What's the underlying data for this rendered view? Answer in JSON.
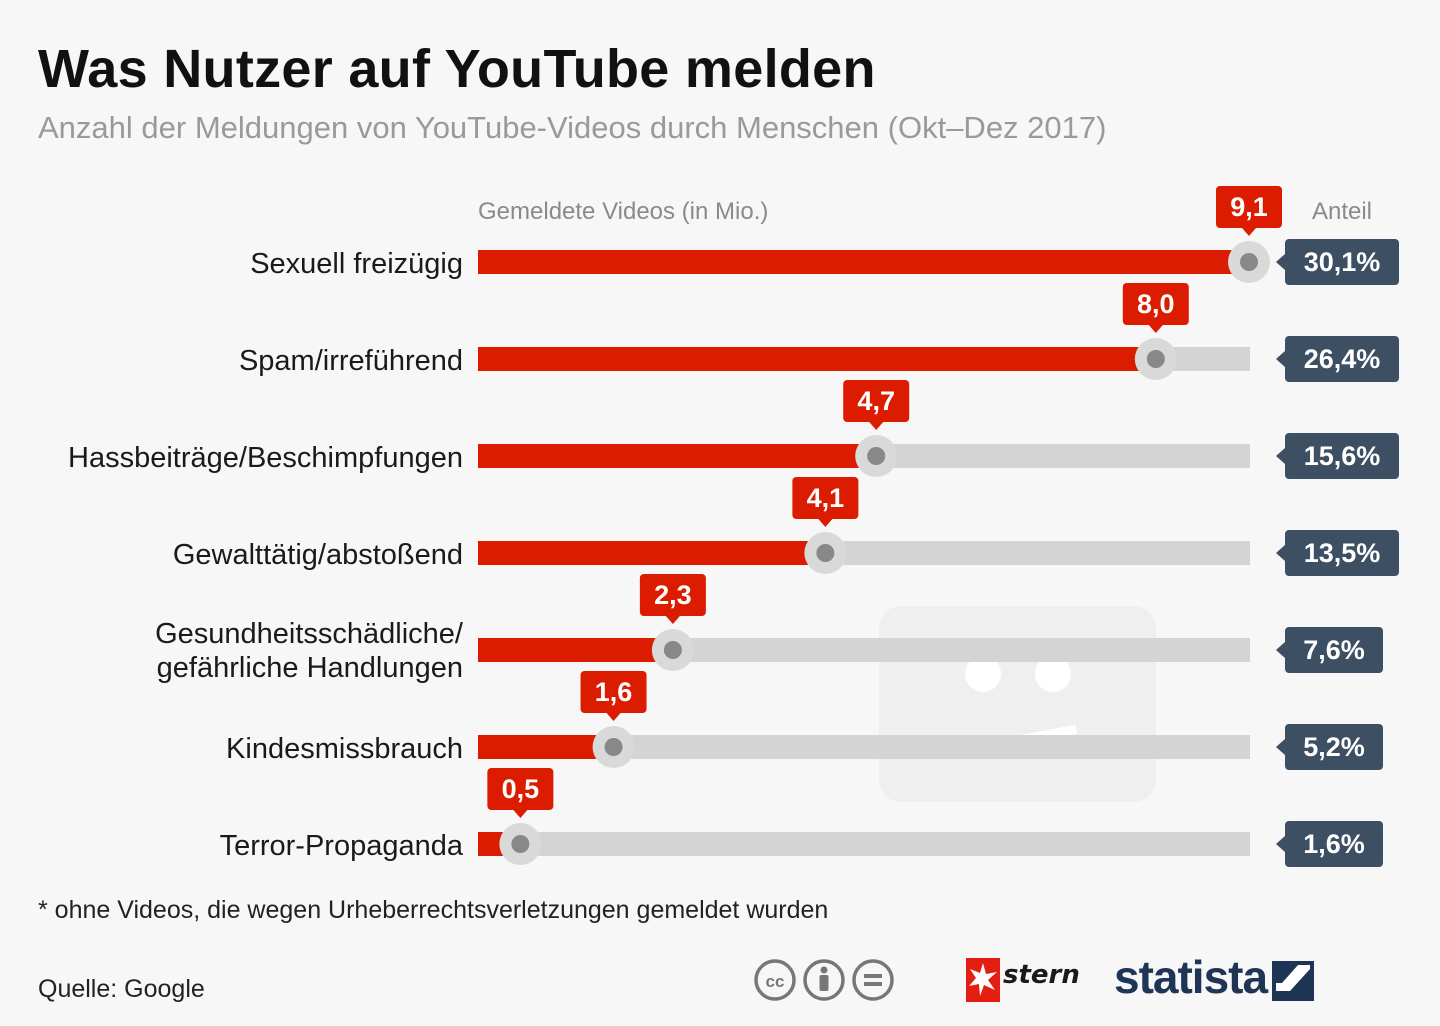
{
  "title": "Was Nutzer auf YouTube melden",
  "subtitle": "Anzahl der Meldungen von YouTube-Videos durch Menschen (Okt–Dez 2017)",
  "footnote": "* ohne Videos, die wegen Urheberrechtsverletzungen gemeldet wurden",
  "source": "Quelle: Google",
  "brand": {
    "stern": "stern",
    "statista": "statista"
  },
  "colors": {
    "bar": "#dc1c00",
    "track": "#d4d4d4",
    "label_bg": "#dc1c00",
    "share_bg": "#3d4f63",
    "knob": "#d9d9d9",
    "knob_dot": "#888888",
    "statista_blue": "#1e3556"
  },
  "icons": [
    "cc-icon",
    "by-icon",
    "nd-icon",
    "stern-star-icon",
    "statista-mark-icon",
    "sad-video-icon"
  ],
  "chart_data": {
    "type": "bar",
    "orientation": "horizontal",
    "value_header": "Gemeldete Videos (in Mio.)",
    "share_header": "Anteil",
    "xlim": [
      0,
      9.1
    ],
    "grid": false,
    "categories": [
      [
        "Sexuell freizügig"
      ],
      [
        "Spam/irreführend"
      ],
      [
        "Hassbeiträge/Beschimpfungen"
      ],
      [
        "Gewalttätig/abstoßend"
      ],
      [
        "Gesundheitsschädliche/",
        "gefährliche Handlungen"
      ],
      [
        "Kindesmissbrauch"
      ],
      [
        "Terror-Propaganda"
      ]
    ],
    "values": [
      9.1,
      8.0,
      4.7,
      4.1,
      2.3,
      1.6,
      0.5
    ],
    "value_labels": [
      "9,1",
      "8,0",
      "4,7",
      "4,1",
      "2,3",
      "1,6",
      "0,5"
    ],
    "shares": [
      "30,1%",
      "26,4%",
      "15,6%",
      "13,5%",
      "7,6%",
      "5,2%",
      "1,6%"
    ]
  }
}
